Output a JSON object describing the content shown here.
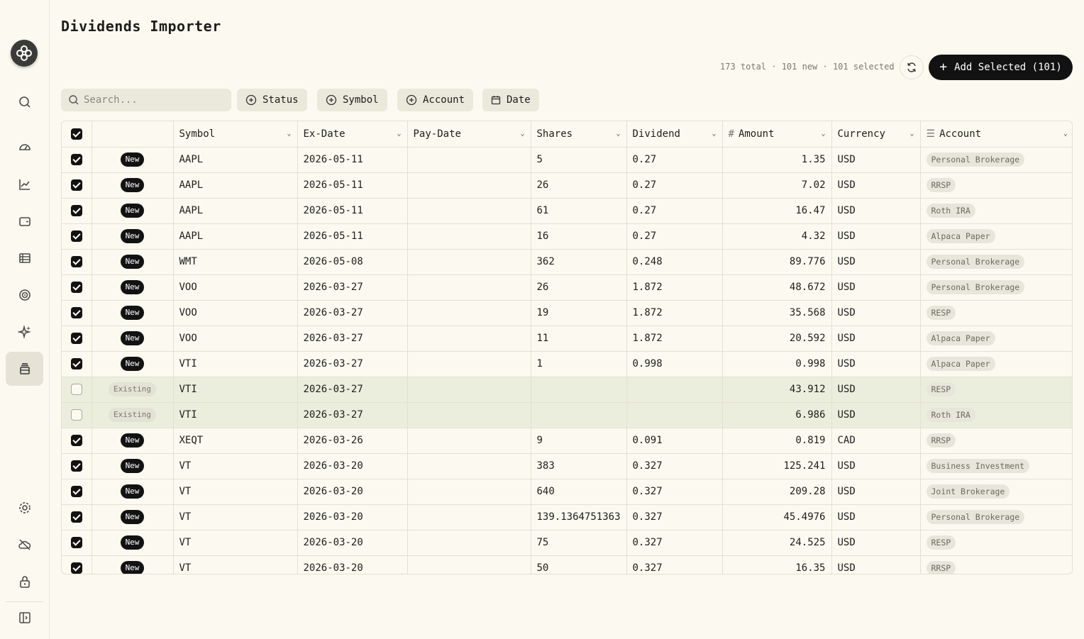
{
  "page": {
    "title": "Dividends Importer"
  },
  "toolbar": {
    "stats": "173 total · 101 new · 101 selected",
    "add_selected_label": "Add Selected (101)"
  },
  "search": {
    "placeholder": "Search...",
    "value": ""
  },
  "filters": {
    "status": "Status",
    "symbol": "Symbol",
    "account": "Account",
    "date": "Date"
  },
  "sidebar": {
    "items": [
      {
        "icon": "search-icon"
      },
      {
        "icon": "dashboard-icon"
      },
      {
        "icon": "chart-line-icon"
      },
      {
        "icon": "wallet-icon"
      },
      {
        "icon": "list-icon"
      },
      {
        "icon": "target-icon"
      },
      {
        "icon": "sparkles-icon"
      },
      {
        "icon": "import-icon",
        "active": true
      },
      {
        "icon": "gear-icon"
      },
      {
        "icon": "cloud-off-icon"
      },
      {
        "icon": "lock-icon"
      },
      {
        "icon": "sidebar-toggle-icon"
      }
    ]
  },
  "columns": {
    "symbol": "Symbol",
    "ex_date": "Ex-Date",
    "pay_date": "Pay-Date",
    "shares": "Shares",
    "dividend": "Dividend",
    "amount": "Amount",
    "currency": "Currency",
    "account": "Account"
  },
  "rows": [
    {
      "selected": true,
      "status": "New",
      "symbol": "AAPL",
      "ex_date": "2026-05-11",
      "pay_date": "",
      "shares": "5",
      "dividend": "0.27",
      "amount": "1.35",
      "currency": "USD",
      "account": "Personal Brokerage"
    },
    {
      "selected": true,
      "status": "New",
      "symbol": "AAPL",
      "ex_date": "2026-05-11",
      "pay_date": "",
      "shares": "26",
      "dividend": "0.27",
      "amount": "7.02",
      "currency": "USD",
      "account": "RRSP"
    },
    {
      "selected": true,
      "status": "New",
      "symbol": "AAPL",
      "ex_date": "2026-05-11",
      "pay_date": "",
      "shares": "61",
      "dividend": "0.27",
      "amount": "16.47",
      "currency": "USD",
      "account": "Roth IRA"
    },
    {
      "selected": true,
      "status": "New",
      "symbol": "AAPL",
      "ex_date": "2026-05-11",
      "pay_date": "",
      "shares": "16",
      "dividend": "0.27",
      "amount": "4.32",
      "currency": "USD",
      "account": "Alpaca Paper"
    },
    {
      "selected": true,
      "status": "New",
      "symbol": "WMT",
      "ex_date": "2026-05-08",
      "pay_date": "",
      "shares": "362",
      "dividend": "0.248",
      "amount": "89.776",
      "currency": "USD",
      "account": "Personal Brokerage"
    },
    {
      "selected": true,
      "status": "New",
      "symbol": "VOO",
      "ex_date": "2026-03-27",
      "pay_date": "",
      "shares": "26",
      "dividend": "1.872",
      "amount": "48.672",
      "currency": "USD",
      "account": "Personal Brokerage"
    },
    {
      "selected": true,
      "status": "New",
      "symbol": "VOO",
      "ex_date": "2026-03-27",
      "pay_date": "",
      "shares": "19",
      "dividend": "1.872",
      "amount": "35.568",
      "currency": "USD",
      "account": "RESP"
    },
    {
      "selected": true,
      "status": "New",
      "symbol": "VOO",
      "ex_date": "2026-03-27",
      "pay_date": "",
      "shares": "11",
      "dividend": "1.872",
      "amount": "20.592",
      "currency": "USD",
      "account": "Alpaca Paper"
    },
    {
      "selected": true,
      "status": "New",
      "symbol": "VTI",
      "ex_date": "2026-03-27",
      "pay_date": "",
      "shares": "1",
      "dividend": "0.998",
      "amount": "0.998",
      "currency": "USD",
      "account": "Alpaca Paper"
    },
    {
      "selected": false,
      "status": "Existing",
      "symbol": "VTI",
      "ex_date": "2026-03-27",
      "pay_date": "",
      "shares": "",
      "dividend": "",
      "amount": "43.912",
      "currency": "USD",
      "account": "RESP"
    },
    {
      "selected": false,
      "status": "Existing",
      "symbol": "VTI",
      "ex_date": "2026-03-27",
      "pay_date": "",
      "shares": "",
      "dividend": "",
      "amount": "6.986",
      "currency": "USD",
      "account": "Roth IRA"
    },
    {
      "selected": true,
      "status": "New",
      "symbol": "XEQT",
      "ex_date": "2026-03-26",
      "pay_date": "",
      "shares": "9",
      "dividend": "0.091",
      "amount": "0.819",
      "currency": "CAD",
      "account": "RRSP"
    },
    {
      "selected": true,
      "status": "New",
      "symbol": "VT",
      "ex_date": "2026-03-20",
      "pay_date": "",
      "shares": "383",
      "dividend": "0.327",
      "amount": "125.241",
      "currency": "USD",
      "account": "Business Investment"
    },
    {
      "selected": true,
      "status": "New",
      "symbol": "VT",
      "ex_date": "2026-03-20",
      "pay_date": "",
      "shares": "640",
      "dividend": "0.327",
      "amount": "209.28",
      "currency": "USD",
      "account": "Joint Brokerage"
    },
    {
      "selected": true,
      "status": "New",
      "symbol": "VT",
      "ex_date": "2026-03-20",
      "pay_date": "",
      "shares": "139.1364751363",
      "dividend": "0.327",
      "amount": "45.4976",
      "currency": "USD",
      "account": "Personal Brokerage"
    },
    {
      "selected": true,
      "status": "New",
      "symbol": "VT",
      "ex_date": "2026-03-20",
      "pay_date": "",
      "shares": "75",
      "dividend": "0.327",
      "amount": "24.525",
      "currency": "USD",
      "account": "RESP"
    },
    {
      "selected": true,
      "status": "New",
      "symbol": "VT",
      "ex_date": "2026-03-20",
      "pay_date": "",
      "shares": "50",
      "dividend": "0.327",
      "amount": "16.35",
      "currency": "USD",
      "account": "RRSP"
    }
  ]
}
